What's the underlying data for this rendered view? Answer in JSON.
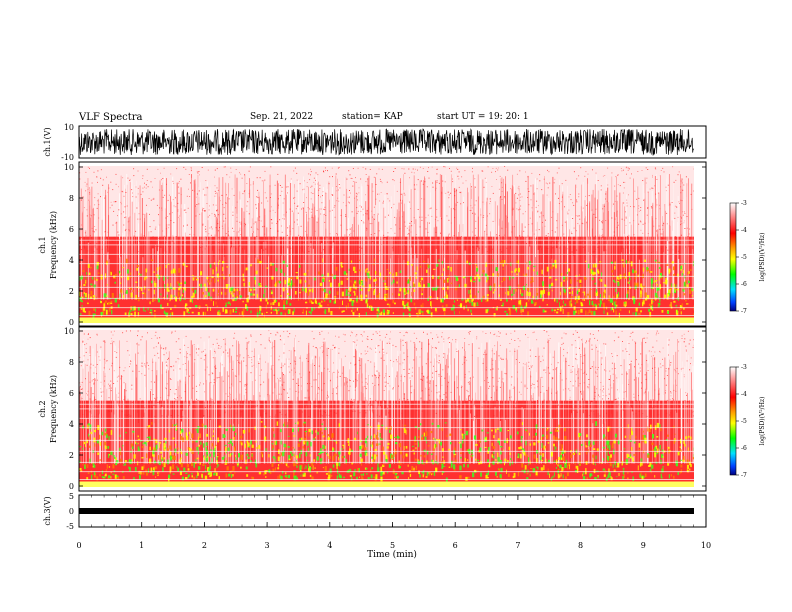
{
  "header": {
    "title": "VLF Spectra",
    "date": "Sep. 21, 2022",
    "station": "station= KAP",
    "start": "start UT =   19: 20: 1"
  },
  "colors": {
    "spectrogram": [
      "#ffffff",
      "#ff8080",
      "#ff2020",
      "#ffff00",
      "#00ff00",
      "#0000ff"
    ],
    "waveform": "#000000"
  },
  "chart_data": [
    {
      "type": "line",
      "name": "ch1-waveform",
      "ylabel": "ch.1(V)",
      "ylim": [
        -10,
        10
      ],
      "yticks": [
        "10",
        "-10"
      ],
      "xlim": [
        0,
        10
      ],
      "grid": false
    },
    {
      "type": "heatmap",
      "name": "ch1-spectrogram",
      "ylabel": "ch.1\nFrequency (kHz)",
      "ylim": [
        0,
        10
      ],
      "yticks": [
        "10",
        "8",
        "6",
        "4",
        "2",
        "0"
      ],
      "xlim": [
        0,
        10
      ],
      "colorbar": {
        "label": "log(PSD)(V²/Hz)",
        "range": [
          -7,
          -3
        ],
        "ticks": [
          "-3",
          "-4",
          "-5",
          "-6",
          "-7"
        ]
      }
    },
    {
      "type": "heatmap",
      "name": "ch2-spectrogram",
      "ylabel": "ch.2\nFrequency (kHz)",
      "ylim": [
        0,
        10
      ],
      "yticks": [
        "10",
        "8",
        "6",
        "4",
        "2",
        "0"
      ],
      "xlim": [
        0,
        10
      ],
      "colorbar": {
        "label": "log(PSD)(V²/Hz)",
        "range": [
          -7,
          -3
        ],
        "ticks": [
          "-3",
          "-4",
          "-5",
          "-6",
          "-7"
        ]
      }
    },
    {
      "type": "line",
      "name": "ch3-waveform",
      "ylabel": "ch.3(V)",
      "ylim": [
        -5,
        5
      ],
      "yticks": [
        "5",
        "0",
        "-5"
      ],
      "xlim": [
        0,
        10
      ],
      "xlabel": "Time (min)",
      "xticks": [
        "0",
        "1",
        "2",
        "3",
        "4",
        "5",
        "6",
        "7",
        "8",
        "9",
        "10"
      ],
      "grid": false
    }
  ]
}
